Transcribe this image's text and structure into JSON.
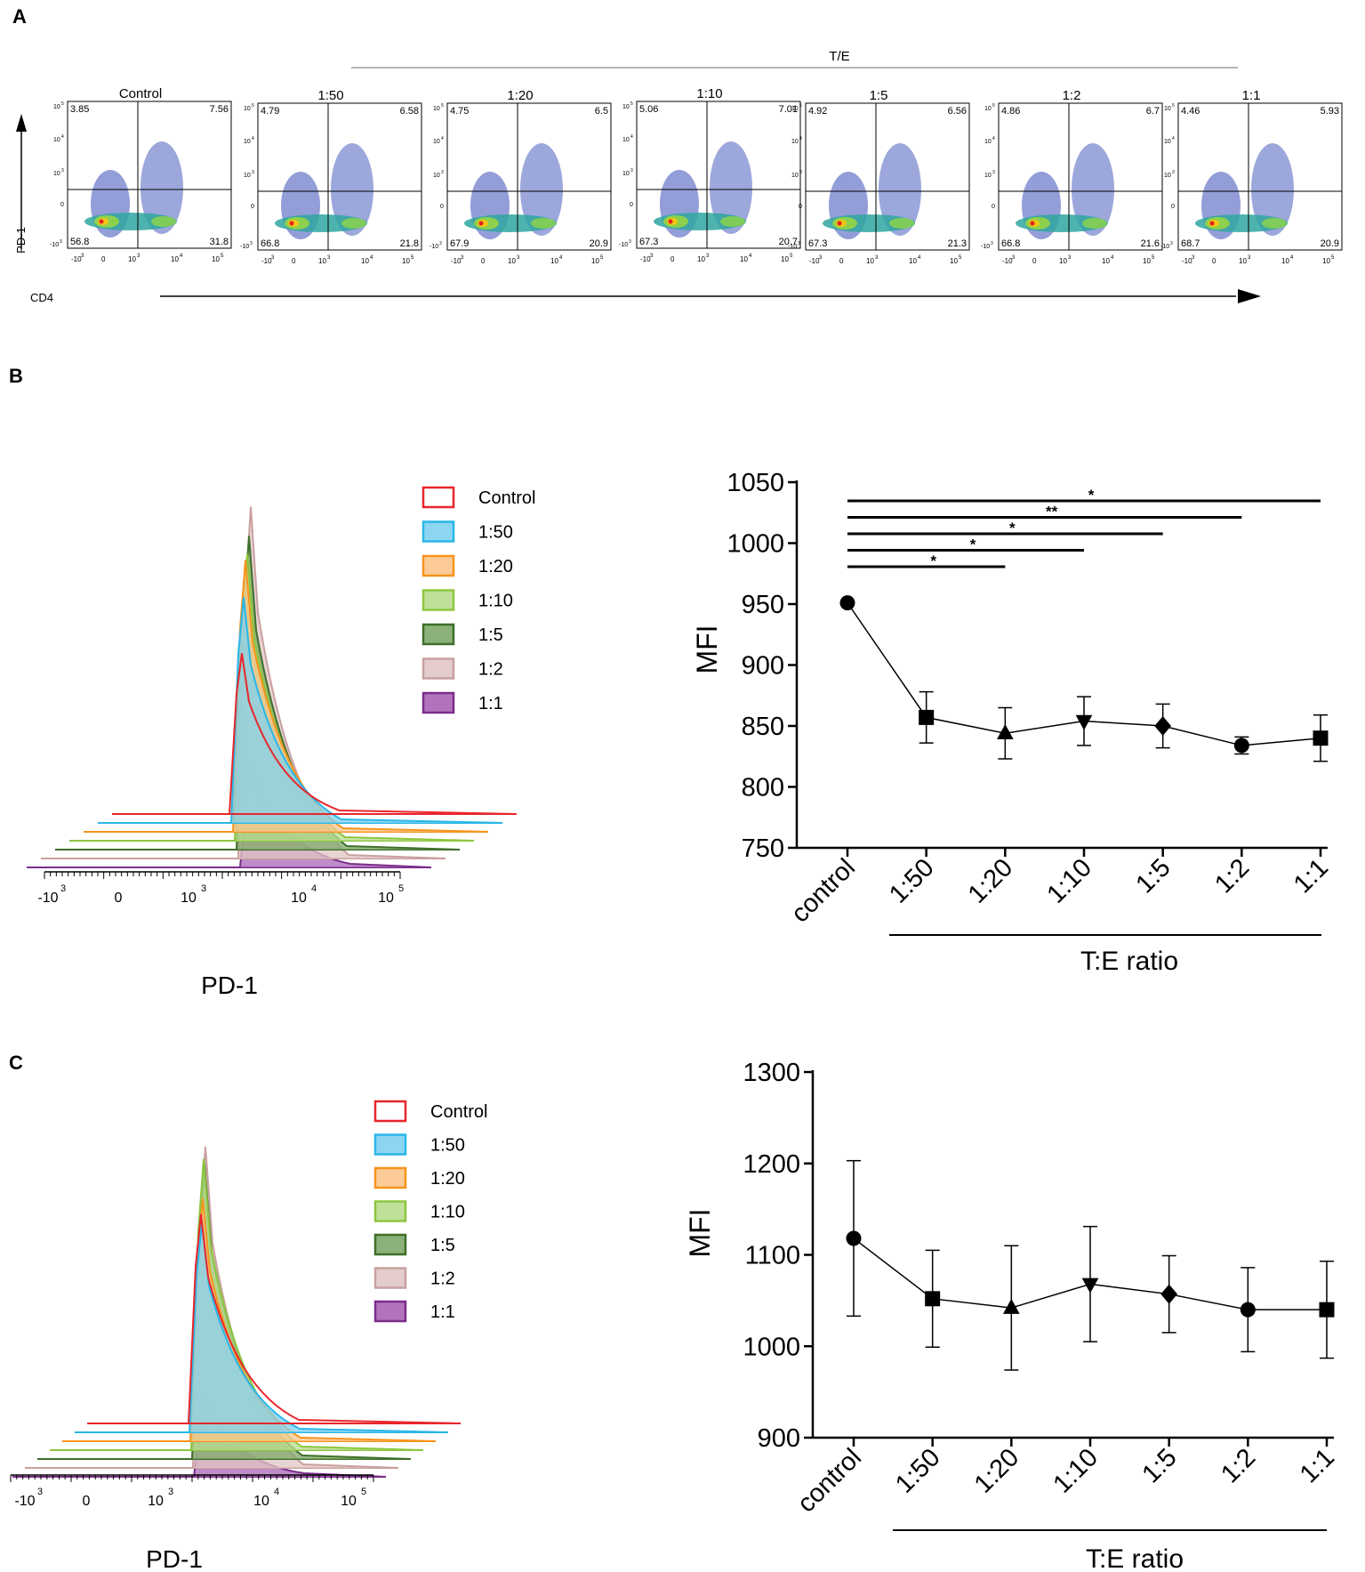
{
  "panels": {
    "A": "A",
    "B": "B",
    "C": "C"
  },
  "panel_a": {
    "group_label": "T/E",
    "y_axis_label": "PD-1",
    "x_axis_label": "CD4",
    "tick_labels": [
      "-10",
      "3",
      "0",
      "10",
      "3",
      "10",
      "4",
      "10",
      "5"
    ],
    "plots": [
      {
        "title": "Control",
        "ul": "3.85",
        "ur": "7.56",
        "ll": "56.8",
        "lr": "31.8"
      },
      {
        "title": "1:50",
        "ul": "4.79",
        "ur": "6.58",
        "ll": "66.8",
        "lr": "21.8"
      },
      {
        "title": "1:20",
        "ul": "4.75",
        "ur": "6.5",
        "ll": "67.9",
        "lr": "20.9"
      },
      {
        "title": "1:10",
        "ul": "5.06",
        "ur": "7.01",
        "ll": "67.3",
        "lr": "20.7"
      },
      {
        "title": "1:5",
        "ul": "4.92",
        "ur": "6.56",
        "ll": "67.3",
        "lr": "21.3"
      },
      {
        "title": "1:2",
        "ul": "4.86",
        "ur": "6.7",
        "ll": "66.8",
        "lr": "21.6"
      },
      {
        "title": "1:1",
        "ul": "4.46",
        "ur": "5.93",
        "ll": "68.7",
        "lr": "20.9"
      }
    ]
  },
  "histograms": {
    "x_label": "PD-1",
    "ticks": [
      {
        "base": "-10",
        "exp": "3"
      },
      {
        "base": "0",
        "exp": ""
      },
      {
        "base": "10",
        "exp": "3"
      },
      {
        "base": "10",
        "exp": "4"
      },
      {
        "base": "10",
        "exp": "5"
      }
    ],
    "legend": [
      {
        "label": "Control",
        "color": "#e8262b",
        "fill": "#ffffff"
      },
      {
        "label": "1:50",
        "color": "#29b6e8",
        "fill": "#7fd1f0"
      },
      {
        "label": "1:20",
        "color": "#f7941d",
        "fill": "#fcc58c"
      },
      {
        "label": "1:10",
        "color": "#8dc63f",
        "fill": "#b9dd8f"
      },
      {
        "label": "1:5",
        "color": "#3f6f2a",
        "fill": "#7da868"
      },
      {
        "label": "1:2",
        "color": "#c9a0a0",
        "fill": "#e2c6c6"
      },
      {
        "label": "1:1",
        "color": "#7b2d8b",
        "fill": "#a865b5"
      }
    ],
    "peak_heights_B": [
      0.42,
      0.59,
      0.71,
      0.75,
      0.82,
      0.92,
      0.28
    ],
    "peak_heights_C": [
      0.56,
      0.56,
      0.65,
      0.78,
      0.79,
      0.86,
      0.22
    ]
  },
  "chart_data": [
    {
      "type": "line",
      "panel": "B",
      "title": "",
      "ylabel": "MFI",
      "xlabel": "T:E  ratio",
      "categories": [
        "control",
        "1:50",
        "1:20",
        "1:10",
        "1:5",
        "1:2",
        "1:1"
      ],
      "markers": [
        "circle",
        "square",
        "triangle",
        "triangle-down",
        "diamond",
        "circle",
        "square"
      ],
      "values": [
        951,
        857,
        844,
        854,
        850,
        834,
        840
      ],
      "error": [
        0,
        21,
        21,
        20,
        18,
        7,
        19
      ],
      "ylim": [
        750,
        1050
      ],
      "yticks": [
        750,
        800,
        850,
        900,
        950,
        1000,
        1050
      ],
      "significance": [
        {
          "from": 0,
          "to": 6,
          "label": "*"
        },
        {
          "from": 0,
          "to": 5,
          "label": "**"
        },
        {
          "from": 0,
          "to": 4,
          "label": "*"
        },
        {
          "from": 0,
          "to": 3,
          "label": "*"
        },
        {
          "from": 0,
          "to": 2,
          "label": "*"
        }
      ]
    },
    {
      "type": "line",
      "panel": "C",
      "title": "",
      "ylabel": "MFI",
      "xlabel": "T:E  ratio",
      "categories": [
        "control",
        "1:50",
        "1:20",
        "1:10",
        "1:5",
        "1:2",
        "1:1"
      ],
      "markers": [
        "circle",
        "square",
        "triangle",
        "triangle-down",
        "diamond",
        "circle",
        "square"
      ],
      "values": [
        1118,
        1052,
        1042,
        1068,
        1057,
        1040,
        1040
      ],
      "error": [
        85,
        53,
        68,
        63,
        42,
        46,
        53
      ],
      "ylim": [
        900,
        1300
      ],
      "yticks": [
        900,
        1000,
        1100,
        1200,
        1300
      ],
      "significance": []
    }
  ]
}
